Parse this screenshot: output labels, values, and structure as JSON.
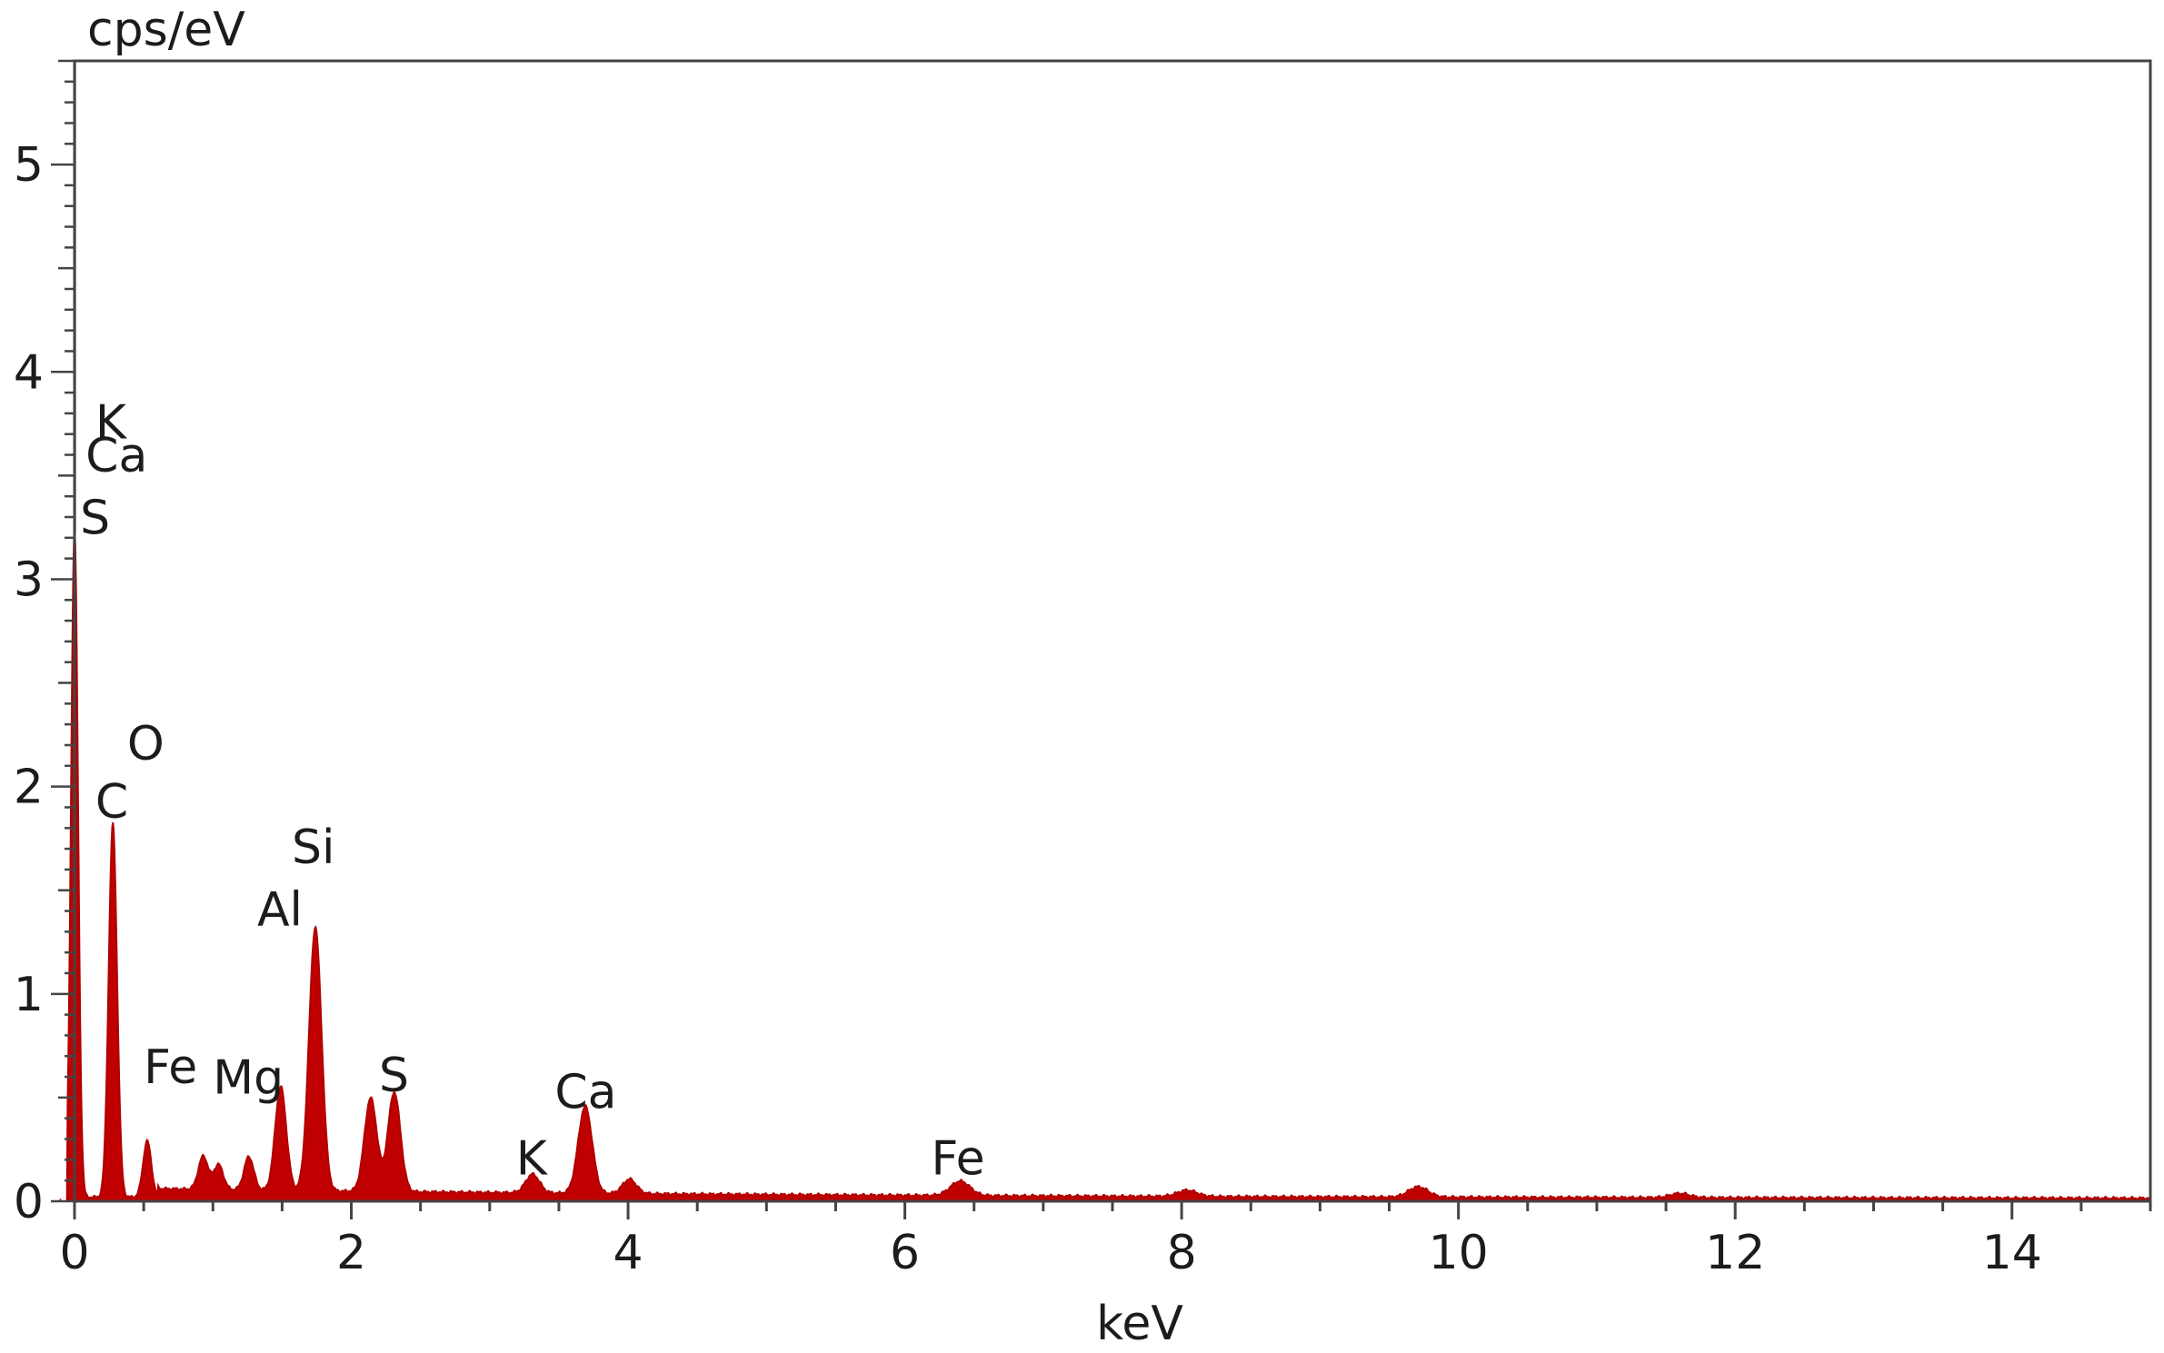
{
  "chart_data": {
    "type": "area",
    "title": "",
    "xlabel": "keV",
    "ylabel": "cps/eV",
    "xlim": [
      0,
      15
    ],
    "ylim": [
      0,
      5.5
    ],
    "x_ticks": [
      0,
      2,
      4,
      6,
      8,
      10,
      12,
      14
    ],
    "x_tick_labels": [
      "0",
      "2",
      "4",
      "6",
      "8",
      "10",
      "12",
      "14"
    ],
    "y_ticks": [
      0,
      1,
      2,
      3,
      4,
      5
    ],
    "y_tick_labels": [
      "0",
      "1",
      "2",
      "3",
      "4",
      "5"
    ],
    "grid": false,
    "colors": {
      "spectrum": "#c00000",
      "axis": "#444444",
      "zero_line": "#f5b7d0"
    },
    "series": [
      {
        "peaks": [
          {
            "x": 0.0,
            "y": 3.22,
            "w": 0.025
          },
          {
            "x": 0.277,
            "y": 1.8,
            "w": 0.03
          },
          {
            "x": 0.525,
            "y": 0.27,
            "w": 0.03
          },
          {
            "x": 0.93,
            "y": 0.16,
            "w": 0.035
          },
          {
            "x": 1.04,
            "y": 0.12,
            "w": 0.035
          },
          {
            "x": 1.26,
            "y": 0.16,
            "w": 0.035
          },
          {
            "x": 1.49,
            "y": 0.5,
            "w": 0.04
          },
          {
            "x": 1.74,
            "y": 1.27,
            "w": 0.045
          },
          {
            "x": 2.14,
            "y": 0.45,
            "w": 0.045
          },
          {
            "x": 2.31,
            "y": 0.48,
            "w": 0.045
          },
          {
            "x": 3.31,
            "y": 0.09,
            "w": 0.05
          },
          {
            "x": 3.69,
            "y": 0.42,
            "w": 0.05
          },
          {
            "x": 4.01,
            "y": 0.07,
            "w": 0.05
          },
          {
            "x": 6.4,
            "y": 0.07,
            "w": 0.07
          },
          {
            "x": 8.04,
            "y": 0.03,
            "w": 0.07
          },
          {
            "x": 9.71,
            "y": 0.05,
            "w": 0.07
          },
          {
            "x": 11.6,
            "y": 0.02,
            "w": 0.07
          }
        ]
      }
    ],
    "annotations": [
      {
        "text": "K",
        "x": 0.15,
        "y": 3.68
      },
      {
        "text": "Ca",
        "x": 0.08,
        "y": 3.52
      },
      {
        "text": "S",
        "x": 0.04,
        "y": 3.22
      },
      {
        "text": "O",
        "x": 0.38,
        "y": 2.13
      },
      {
        "text": "C",
        "x": 0.15,
        "y": 1.85
      },
      {
        "text": "Si",
        "x": 1.57,
        "y": 1.63
      },
      {
        "text": "Al",
        "x": 1.32,
        "y": 1.33
      },
      {
        "text": "Fe",
        "x": 0.5,
        "y": 0.57
      },
      {
        "text": "Mg",
        "x": 1.0,
        "y": 0.52
      },
      {
        "text": "S",
        "x": 2.2,
        "y": 0.53
      },
      {
        "text": "K",
        "x": 3.19,
        "y": 0.13
      },
      {
        "text": "Ca",
        "x": 3.47,
        "y": 0.45
      },
      {
        "text": "Fe",
        "x": 6.19,
        "y": 0.13
      }
    ]
  }
}
